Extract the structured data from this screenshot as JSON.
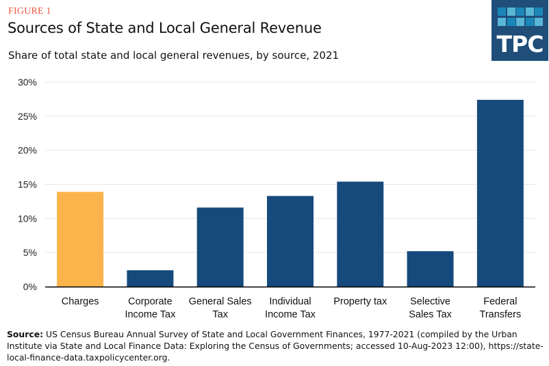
{
  "figure_label": "FIGURE 1",
  "title": "Sources of State and Local General Revenue",
  "subtitle": "Share of total state and local general revenues, by source, 2021",
  "logo": {
    "text": "TPC",
    "icon": "tpc-logo-grid-icon",
    "background": "#1f4e79",
    "tile_colors": [
      "#1a87b8",
      "#5ab6d6"
    ]
  },
  "colors": {
    "highlight": "#fbb44c",
    "primary": "#174a7c",
    "grid": "#e6e6e6",
    "axis": "#000000"
  },
  "source": {
    "label": "Source:",
    "text": " US Census Bureau Annual Survey of State and Local Government Finances, 1977-2021 (compiled by the Urban Institute via State and Local Finance Data: Exploring the Census of Governments; accessed 10-Aug-2023 12:00), https://state-local-finance-data.taxpolicycenter.org."
  },
  "chart_data": {
    "type": "bar",
    "title": "Sources of State and Local General Revenue",
    "subtitle": "Share of total state and local general revenues, by source, 2021",
    "categories": [
      [
        "Charges"
      ],
      [
        "Corporate",
        "Income Tax"
      ],
      [
        "General Sales",
        "Tax"
      ],
      [
        "Individual",
        "Income Tax"
      ],
      [
        "Property tax"
      ],
      [
        "Selective",
        "Sales Tax"
      ],
      [
        "Federal",
        "Transfers"
      ]
    ],
    "values": [
      13.9,
      2.4,
      11.6,
      13.3,
      15.4,
      5.2,
      27.4
    ],
    "highlight_index": 0,
    "xlabel": "",
    "ylabel": "",
    "ylim": [
      0,
      30
    ],
    "yticks": [
      0,
      5,
      10,
      15,
      20,
      25,
      30
    ],
    "ytick_labels": [
      "0%",
      "5%",
      "10%",
      "15%",
      "20%",
      "25%",
      "30%"
    ],
    "grid": true,
    "legend": "none"
  }
}
